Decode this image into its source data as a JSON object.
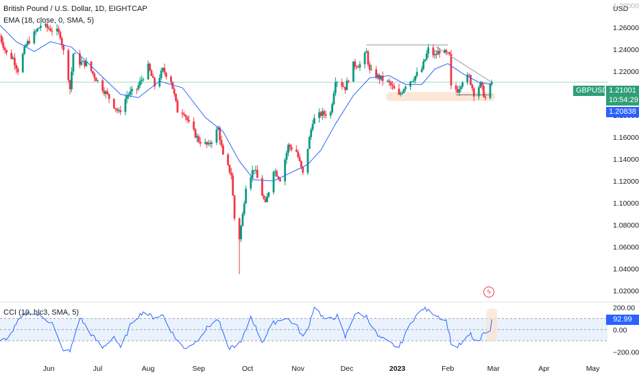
{
  "header": {
    "title": "British Pound / U.S. Dollar, 1D, EIGHTCAP",
    "indicator_ema": "EMA (18, close, 0, SMA, 5)",
    "indicator_cci": "CCI (10, hlc3, SMA, 5)"
  },
  "price_axis": {
    "currency": "USD",
    "symbol_tag": "GBPUSD",
    "last_price": "1.21001",
    "countdown": "10:54:29",
    "level_price": "1.20838",
    "cci_value": "92.99"
  },
  "colors": {
    "up": "#089981",
    "down": "#f23645",
    "ema_line": "#2962ff",
    "cci_line": "#2962ff",
    "cci_band": "#e3effd",
    "highlight": "#fbe2cf",
    "last_price_line": "#2e9e77",
    "trend_line": "#9598a1"
  },
  "icons": {
    "alert": "lightning-alert-icon"
  },
  "chart_data": [
    {
      "type": "candlestick",
      "title": "British Pound / U.S. Dollar, 1D, EIGHTCAP",
      "ylabel": "USD",
      "y_ticks": [
        1.26,
        1.24,
        1.22,
        1.2,
        1.18,
        1.16,
        1.14,
        1.12,
        1.1,
        1.08,
        1.06,
        1.04,
        1.02
      ],
      "y_tick_labels": [
        "1.26000",
        "1.24000",
        "1.22000",
        "1.20000",
        "1.18000",
        "1.16000",
        "1.14000",
        "1.12000",
        "1.10000",
        "1.08000",
        "1.06000",
        "1.04000",
        "1.02000"
      ],
      "y_top_partial_label": "1.28000",
      "ylim": [
        1.01,
        1.285
      ],
      "x_labels": [
        "Jun",
        "Jul",
        "Aug",
        "Sep",
        "Oct",
        "Nov",
        "Dec",
        "2023",
        "Feb",
        "Mar",
        "Apr",
        "May"
      ],
      "x_label_dates": [
        "2022-06-01",
        "2022-07-01",
        "2022-08-01",
        "2022-09-01",
        "2022-10-01",
        "2022-11-01",
        "2022-12-01",
        "2023-01-01",
        "2023-02-01",
        "2023-03-01",
        "2023-04-01",
        "2023-05-01"
      ],
      "x_range": [
        "2022-05-02",
        "2023-05-10"
      ],
      "last_price": 1.21001,
      "horizontal_level": 1.20838,
      "close_path": [
        [
          "2022-05-02",
          1.252
        ],
        [
          "2022-05-06",
          1.236
        ],
        [
          "2022-05-10",
          1.232
        ],
        [
          "2022-05-13",
          1.221
        ],
        [
          "2022-05-18",
          1.244
        ],
        [
          "2022-05-23",
          1.254
        ],
        [
          "2022-05-27",
          1.262
        ],
        [
          "2022-06-01",
          1.259
        ],
        [
          "2022-06-06",
          1.256
        ],
        [
          "2022-06-08",
          1.253
        ],
        [
          "2022-06-13",
          1.215
        ],
        [
          "2022-06-14",
          1.204
        ],
        [
          "2022-06-16",
          1.236
        ],
        [
          "2022-06-20",
          1.228
        ],
        [
          "2022-06-24",
          1.227
        ],
        [
          "2022-06-28",
          1.218
        ],
        [
          "2022-07-01",
          1.211
        ],
        [
          "2022-07-07",
          1.198
        ],
        [
          "2022-07-14",
          1.182
        ],
        [
          "2022-07-19",
          1.198
        ],
        [
          "2022-07-25",
          1.204
        ],
        [
          "2022-08-01",
          1.224
        ],
        [
          "2022-08-05",
          1.207
        ],
        [
          "2022-08-10",
          1.221
        ],
        [
          "2022-08-15",
          1.212
        ],
        [
          "2022-08-19",
          1.184
        ],
        [
          "2022-08-23",
          1.183
        ],
        [
          "2022-08-26",
          1.172
        ],
        [
          "2022-09-01",
          1.157
        ],
        [
          "2022-09-07",
          1.152
        ],
        [
          "2022-09-13",
          1.168
        ],
        [
          "2022-09-16",
          1.142
        ],
        [
          "2022-09-21",
          1.126
        ],
        [
          "2022-09-23",
          1.086
        ],
        [
          "2022-09-26",
          1.068
        ],
        [
          "2022-09-28",
          1.089
        ],
        [
          "2022-09-30",
          1.116
        ],
        [
          "2022-10-05",
          1.132
        ],
        [
          "2022-10-12",
          1.098
        ],
        [
          "2022-10-17",
          1.131
        ],
        [
          "2022-10-21",
          1.122
        ],
        [
          "2022-10-26",
          1.152
        ],
        [
          "2022-10-31",
          1.147
        ],
        [
          "2022-11-04",
          1.126
        ],
        [
          "2022-11-10",
          1.175
        ],
        [
          "2022-11-15",
          1.181
        ],
        [
          "2022-11-21",
          1.182
        ],
        [
          "2022-11-24",
          1.213
        ],
        [
          "2022-11-30",
          1.205
        ],
        [
          "2022-12-05",
          1.226
        ],
        [
          "2022-12-09",
          1.226
        ],
        [
          "2022-12-13",
          1.237
        ],
        [
          "2022-12-15",
          1.22
        ],
        [
          "2022-12-20",
          1.215
        ],
        [
          "2022-12-27",
          1.209
        ],
        [
          "2023-01-02",
          1.197
        ],
        [
          "2023-01-06",
          1.208
        ],
        [
          "2023-01-11",
          1.214
        ],
        [
          "2023-01-16",
          1.222
        ],
        [
          "2023-01-20",
          1.24
        ],
        [
          "2023-01-24",
          1.234
        ],
        [
          "2023-01-27",
          1.239
        ],
        [
          "2023-02-02",
          1.234
        ],
        [
          "2023-02-03",
          1.205
        ],
        [
          "2023-02-07",
          1.203
        ],
        [
          "2023-02-10",
          1.212
        ],
        [
          "2023-02-14",
          1.215
        ],
        [
          "2023-02-17",
          1.2
        ],
        [
          "2023-02-21",
          1.208
        ],
        [
          "2023-02-24",
          1.195
        ],
        [
          "2023-02-27",
          1.206
        ],
        [
          "2023-02-28",
          1.21
        ]
      ],
      "ema_path": [
        [
          "2022-05-02",
          1.262
        ],
        [
          "2022-05-12",
          1.247
        ],
        [
          "2022-05-23",
          1.238
        ],
        [
          "2022-06-02",
          1.247
        ],
        [
          "2022-06-15",
          1.242
        ],
        [
          "2022-07-01",
          1.219
        ],
        [
          "2022-07-15",
          1.199
        ],
        [
          "2022-07-26",
          1.196
        ],
        [
          "2022-08-08",
          1.211
        ],
        [
          "2022-08-22",
          1.205
        ],
        [
          "2022-09-05",
          1.178
        ],
        [
          "2022-09-16",
          1.165
        ],
        [
          "2022-09-26",
          1.138
        ],
        [
          "2022-10-05",
          1.121
        ],
        [
          "2022-10-17",
          1.12
        ],
        [
          "2022-10-31",
          1.13
        ],
        [
          "2022-11-07",
          1.135
        ],
        [
          "2022-11-15",
          1.148
        ],
        [
          "2022-11-24",
          1.172
        ],
        [
          "2022-12-05",
          1.198
        ],
        [
          "2022-12-15",
          1.214
        ],
        [
          "2022-12-27",
          1.216
        ],
        [
          "2023-01-06",
          1.208
        ],
        [
          "2023-01-16",
          1.208
        ],
        [
          "2023-01-24",
          1.222
        ],
        [
          "2023-02-01",
          1.227
        ],
        [
          "2023-02-10",
          1.218
        ],
        [
          "2023-02-20",
          1.21
        ],
        [
          "2023-02-28",
          1.208
        ]
      ],
      "resistance_line": {
        "from": [
          "2022-12-13",
          1.244
        ],
        "to": [
          "2023-02-01",
          1.244
        ]
      },
      "descending_line": {
        "from": [
          "2023-01-25",
          1.242
        ],
        "to": [
          "2023-02-28",
          1.21
        ]
      },
      "support_line": {
        "from": [
          "2023-02-06",
          1.1985
        ],
        "to": [
          "2023-02-28",
          1.1985
        ]
      },
      "support_zone": {
        "from": "2022-12-25",
        "to": "2023-03-02",
        "low": 1.193,
        "high": 1.201
      }
    },
    {
      "type": "line",
      "title": "CCI (10, hlc3, SMA, 5)",
      "y_ticks": [
        200,
        0,
        -200
      ],
      "y_tick_labels": [
        "200.00",
        "0.00",
        "−200.00"
      ],
      "ylim": [
        -265,
        245
      ],
      "band": [
        -100,
        100
      ],
      "last_value": 92.99,
      "series": [
        {
          "values": [
            [
              "2022-05-02",
              -110
            ],
            [
              "2022-05-08",
              -60
            ],
            [
              "2022-05-14",
              95
            ],
            [
              "2022-05-20",
              160
            ],
            [
              "2022-05-27",
              120
            ],
            [
              "2022-06-03",
              60
            ],
            [
              "2022-06-09",
              -170
            ],
            [
              "2022-06-14",
              -200
            ],
            [
              "2022-06-20",
              110
            ],
            [
              "2022-06-27",
              -40
            ],
            [
              "2022-07-04",
              -165
            ],
            [
              "2022-07-11",
              -60
            ],
            [
              "2022-07-15",
              -170
            ],
            [
              "2022-07-22",
              70
            ],
            [
              "2022-07-29",
              160
            ],
            [
              "2022-08-04",
              110
            ],
            [
              "2022-08-10",
              130
            ],
            [
              "2022-08-17",
              -60
            ],
            [
              "2022-08-23",
              -170
            ],
            [
              "2022-08-30",
              -110
            ],
            [
              "2022-09-07",
              30
            ],
            [
              "2022-09-13",
              90
            ],
            [
              "2022-09-19",
              -170
            ],
            [
              "2022-09-27",
              -120
            ],
            [
              "2022-10-03",
              120
            ],
            [
              "2022-10-10",
              -110
            ],
            [
              "2022-10-17",
              60
            ],
            [
              "2022-10-24",
              110
            ],
            [
              "2022-10-31",
              40
            ],
            [
              "2022-11-05",
              -100
            ],
            [
              "2022-11-11",
              210
            ],
            [
              "2022-11-18",
              80
            ],
            [
              "2022-11-25",
              120
            ],
            [
              "2022-11-30",
              -70
            ],
            [
              "2022-12-06",
              150
            ],
            [
              "2022-12-13",
              120
            ],
            [
              "2022-12-20",
              -60
            ],
            [
              "2022-12-27",
              -120
            ],
            [
              "2023-01-02",
              -160
            ],
            [
              "2023-01-10",
              80
            ],
            [
              "2023-01-17",
              190
            ],
            [
              "2023-01-24",
              140
            ],
            [
              "2023-01-31",
              80
            ],
            [
              "2023-02-04",
              -180
            ],
            [
              "2023-02-10",
              -120
            ],
            [
              "2023-02-15",
              -40
            ],
            [
              "2023-02-19",
              -150
            ],
            [
              "2023-02-23",
              -30
            ],
            [
              "2023-02-26",
              -80
            ],
            [
              "2023-02-28",
              93
            ]
          ]
        }
      ]
    }
  ]
}
